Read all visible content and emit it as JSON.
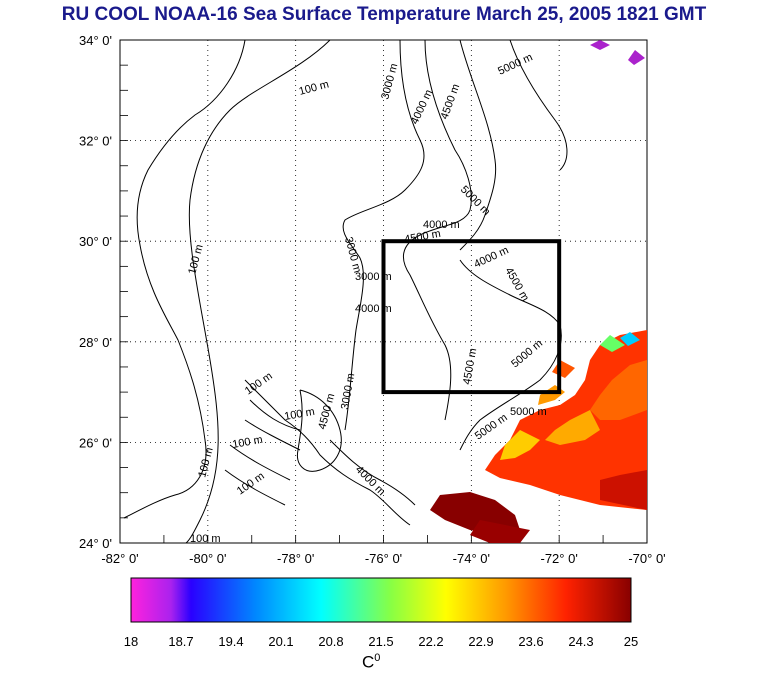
{
  "title": "RU COOL  NOAA-16 Sea Surface Temperature March 25, 2005 1821 GMT",
  "map": {
    "lon_ticks": [
      "-82° 0'",
      "-80° 0'",
      "-78° 0'",
      "-76° 0'",
      "-74° 0'",
      "-72° 0'",
      "-70° 0'"
    ],
    "lat_ticks": [
      "34° 0'",
      "32° 0'",
      "30° 0'",
      "28° 0'",
      "26° 0'",
      "24° 0'"
    ],
    "lon_range": [
      -82,
      -70
    ],
    "lat_range": [
      24,
      34
    ],
    "box": {
      "lon": [
        -76,
        -72
      ],
      "lat": [
        27,
        30
      ]
    },
    "contour_labels": [
      "100 m",
      "100 m",
      "100 m",
      "100 m",
      "100 m",
      "100 m",
      "100 m",
      "100 m",
      "3000 m",
      "4000 m",
      "4500 m",
      "5000 m",
      "5000 m",
      "3000 m",
      "4000 m",
      "4500 m",
      "4000 m",
      "4500 m",
      "3000 m",
      "4000 m",
      "5000 m",
      "4500 m",
      "5000 m",
      "5000 m",
      "3000 m",
      "4500 m",
      "4000 m"
    ]
  },
  "colorbar": {
    "ticks": [
      "18",
      "18.7",
      "19.4",
      "20.1",
      "20.8",
      "21.5",
      "22.2",
      "22.9",
      "23.6",
      "24.3",
      "25"
    ],
    "unit": "C",
    "unit_sup": "0",
    "colors": [
      "#ff22dd",
      "#2a00ff",
      "#0088ff",
      "#00ffff",
      "#88ff44",
      "#ffff00",
      "#ff9900",
      "#ff2200",
      "#880000"
    ]
  }
}
